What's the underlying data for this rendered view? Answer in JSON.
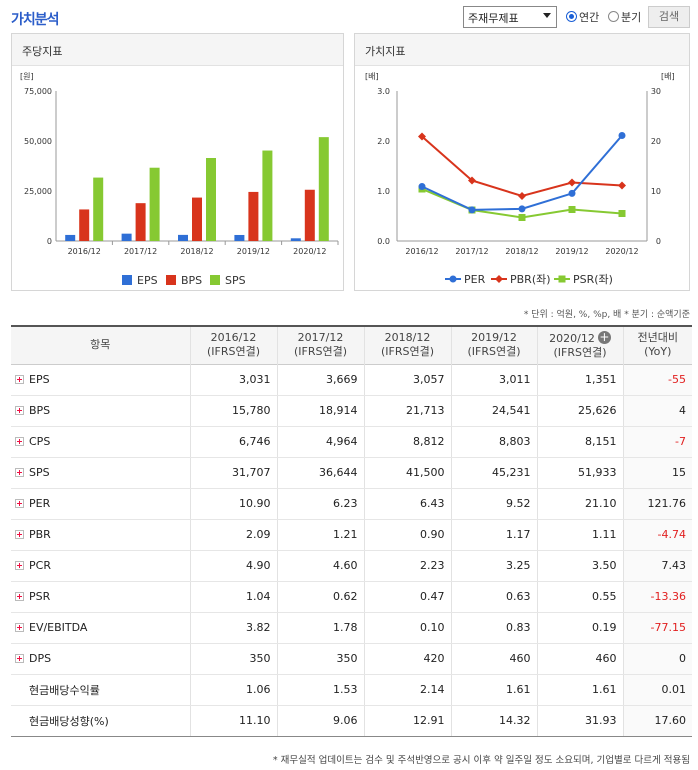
{
  "page": {
    "title": "가치분석",
    "select_value": "주재무제표",
    "radio_annual": "연간",
    "radio_quarter": "분기",
    "search_label": "검색"
  },
  "panels": {
    "left_title": "주당지표",
    "right_title": "가치지표"
  },
  "chart_data": [
    {
      "type": "bar",
      "title": "주당지표",
      "unit_label": "[원]",
      "categories": [
        "2016/12",
        "2017/12",
        "2018/12",
        "2019/12",
        "2020/12"
      ],
      "yticks": [
        "75,000",
        "50,000",
        "25,000",
        "0"
      ],
      "ylim": [
        0,
        75000
      ],
      "series": [
        {
          "name": "EPS",
          "color": "#2f6fd6",
          "values": [
            3031,
            3669,
            3057,
            3011,
            1351
          ]
        },
        {
          "name": "BPS",
          "color": "#d8341c",
          "values": [
            15780,
            18914,
            21713,
            24541,
            25626
          ]
        },
        {
          "name": "SPS",
          "color": "#86c932",
          "values": [
            31707,
            36644,
            41500,
            45231,
            51933
          ]
        }
      ]
    },
    {
      "type": "line",
      "title": "가치지표",
      "left_unit_label": "[배]",
      "right_unit_label": "[배]",
      "categories": [
        "2016/12",
        "2017/12",
        "2018/12",
        "2019/12",
        "2020/12"
      ],
      "left_yticks": [
        "3.0",
        "2.0",
        "1.0",
        "0.0"
      ],
      "right_yticks": [
        "30",
        "20",
        "10",
        "0"
      ],
      "ylim_left": [
        0,
        3
      ],
      "ylim_right": [
        0,
        30
      ],
      "series": [
        {
          "name": "PER",
          "color": "#2f6fd6",
          "axis": "right",
          "marker": "circle",
          "values": [
            10.9,
            6.23,
            6.43,
            9.52,
            21.1
          ]
        },
        {
          "name": "PBR(좌)",
          "color": "#d8341c",
          "axis": "left",
          "marker": "diamond",
          "values": [
            2.09,
            1.21,
            0.9,
            1.17,
            1.11
          ]
        },
        {
          "name": "PSR(좌)",
          "color": "#86c932",
          "axis": "left",
          "marker": "square",
          "values": [
            1.04,
            0.62,
            0.47,
            0.63,
            0.55
          ]
        }
      ]
    }
  ],
  "note_unit": "* 단위 : 억원, %, %p, 배   * 분기 : 순액기준",
  "table": {
    "headers": [
      {
        "l1": "항목",
        "l2": ""
      },
      {
        "l1": "2016/12",
        "l2": "(IFRS연결)"
      },
      {
        "l1": "2017/12",
        "l2": "(IFRS연결)"
      },
      {
        "l1": "2018/12",
        "l2": "(IFRS연결)"
      },
      {
        "l1": "2019/12",
        "l2": "(IFRS연결)"
      },
      {
        "l1": "2020/12",
        "l2": "(IFRS연결)"
      },
      {
        "l1": "전년대비",
        "l2": "(YoY)"
      }
    ],
    "rows": [
      {
        "label": "EPS",
        "expand": true,
        "values": [
          "3,031",
          "3,669",
          "3,057",
          "3,011",
          "1,351"
        ],
        "yoy": "-55",
        "neg": true
      },
      {
        "label": "BPS",
        "expand": true,
        "values": [
          "15,780",
          "18,914",
          "21,713",
          "24,541",
          "25,626"
        ],
        "yoy": "4",
        "neg": false
      },
      {
        "label": "CPS",
        "expand": true,
        "values": [
          "6,746",
          "4,964",
          "8,812",
          "8,803",
          "8,151"
        ],
        "yoy": "-7",
        "neg": true
      },
      {
        "label": "SPS",
        "expand": true,
        "values": [
          "31,707",
          "36,644",
          "41,500",
          "45,231",
          "51,933"
        ],
        "yoy": "15",
        "neg": false
      },
      {
        "label": "PER",
        "expand": true,
        "values": [
          "10.90",
          "6.23",
          "6.43",
          "9.52",
          "21.10"
        ],
        "yoy": "121.76",
        "neg": false
      },
      {
        "label": "PBR",
        "expand": true,
        "values": [
          "2.09",
          "1.21",
          "0.90",
          "1.17",
          "1.11"
        ],
        "yoy": "-4.74",
        "neg": true
      },
      {
        "label": "PCR",
        "expand": true,
        "values": [
          "4.90",
          "4.60",
          "2.23",
          "3.25",
          "3.50"
        ],
        "yoy": "7.43",
        "neg": false
      },
      {
        "label": "PSR",
        "expand": true,
        "values": [
          "1.04",
          "0.62",
          "0.47",
          "0.63",
          "0.55"
        ],
        "yoy": "-13.36",
        "neg": true
      },
      {
        "label": "EV/EBITDA",
        "expand": true,
        "values": [
          "3.82",
          "1.78",
          "0.10",
          "0.83",
          "0.19"
        ],
        "yoy": "-77.15",
        "neg": true
      },
      {
        "label": "DPS",
        "expand": true,
        "values": [
          "350",
          "350",
          "420",
          "460",
          "460"
        ],
        "yoy": "0",
        "neg": false
      },
      {
        "label": "현금배당수익률",
        "expand": false,
        "values": [
          "1.06",
          "1.53",
          "2.14",
          "1.61",
          "1.61"
        ],
        "yoy": "0.01",
        "neg": false
      },
      {
        "label": "현금배당성향(%)",
        "expand": false,
        "values": [
          "11.10",
          "9.06",
          "12.91",
          "14.32",
          "31.93"
        ],
        "yoy": "17.60",
        "neg": false
      }
    ]
  },
  "footnote": "* 재무실적 업데이트는 검수 및 주석반영으로 공시 이후 약 일주일 정도 소요되며, 기업별로 다르게 적용됨"
}
